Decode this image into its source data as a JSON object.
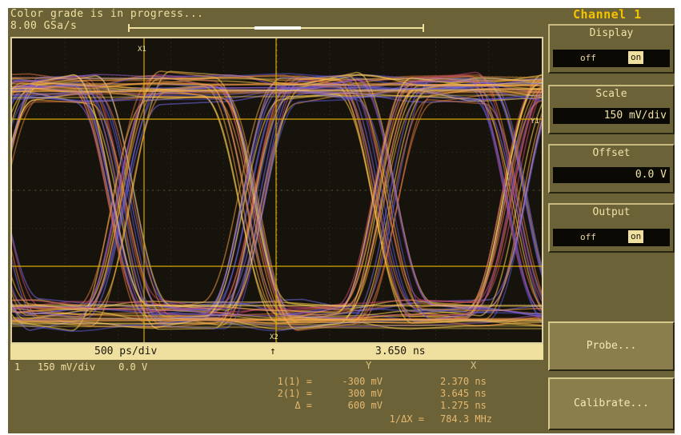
{
  "status": {
    "message": "Color grade is in progress...",
    "sample_rate": "8.00 GSa/s"
  },
  "graticule": {
    "marker_x1": "X1",
    "marker_x2": "X2",
    "marker_y1": "Y1"
  },
  "timebar": {
    "timebase": "500 ps/div",
    "trigger_arrow": "↑",
    "delay": "3.650 ns"
  },
  "channel_info": {
    "channel": "1",
    "scale": "150 mV/div",
    "offset": "0.0 V"
  },
  "measurements": {
    "header_y": "Y",
    "header_x": "X",
    "rows": [
      {
        "label": "1(1) =",
        "y": "-300 mV",
        "x": "2.370 ns"
      },
      {
        "label": "2(1) =",
        "y": "300 mV",
        "x": "3.645 ns"
      },
      {
        "label": "Δ =",
        "y": "600 mV",
        "x": "1.275 ns"
      }
    ],
    "freq_label": "1/ΔX =",
    "freq_value": "784.3 MHz"
  },
  "panel": {
    "title": "Channel 1",
    "display": {
      "label": "Display",
      "off": "off",
      "on": "on"
    },
    "scale": {
      "label": "Scale",
      "value": "150 mV/div"
    },
    "offset": {
      "label": "Offset",
      "value": "0.0 V"
    },
    "output": {
      "label": "Output",
      "off": "off",
      "on": "on"
    },
    "probe_button": "Probe...",
    "calibrate_button": "Calibrate..."
  }
}
